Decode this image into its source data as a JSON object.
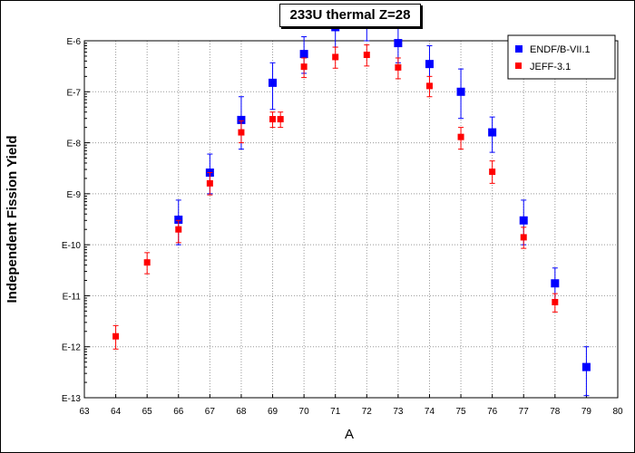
{
  "chart_data": {
    "type": "scatter",
    "title": "233U thermal Z=28",
    "xlabel": "A",
    "ylabel": "Independent Fission Yield",
    "xlim": [
      63,
      80
    ],
    "ylim": [
      1e-13,
      1e-06
    ],
    "yscale": "log",
    "grid": true,
    "legend_position": "top-right",
    "x_ticks": [
      "63",
      "64",
      "65",
      "66",
      "67",
      "68",
      "69",
      "70",
      "71",
      "72",
      "73",
      "74",
      "75",
      "76",
      "77",
      "78",
      "79",
      "80"
    ],
    "y_ticks": [
      "E-13",
      "E-12",
      "E-11",
      "E-10",
      "E-9",
      "E-8",
      "E-7",
      "E-6"
    ],
    "series": [
      {
        "name": "ENDF/B-VII.1",
        "color": "#0000ff",
        "marker": "square",
        "points": [
          {
            "x": 66,
            "y": 3.1e-10,
            "lo": 1e-10,
            "hi": 7.5e-10
          },
          {
            "x": 67,
            "y": 2.6e-09,
            "lo": 1e-09,
            "hi": 6e-09
          },
          {
            "x": 68,
            "y": 2.8e-08,
            "lo": 7.5e-09,
            "hi": 8e-08
          },
          {
            "x": 69,
            "y": 1.5e-07,
            "lo": 4.5e-08,
            "hi": 3.7e-07
          },
          {
            "x": 70,
            "y": 5.5e-07,
            "lo": 2.3e-07,
            "hi": 1.2e-06
          },
          {
            "x": 71,
            "y": 1.85e-06,
            "lo": 7.5e-07,
            "hi": 3.5e-06
          },
          {
            "x": 72,
            "y": 2.1e-06,
            "lo": 1e-06,
            "hi": 3.5e-06
          },
          {
            "x": 73,
            "y": 9e-07,
            "lo": 3.7e-07,
            "hi": 1.9e-06
          },
          {
            "x": 74,
            "y": 3.5e-07,
            "lo": 1.2e-07,
            "hi": 8e-07
          },
          {
            "x": 75,
            "y": 1e-07,
            "lo": 3e-08,
            "hi": 2.8e-07
          },
          {
            "x": 76,
            "y": 1.6e-08,
            "lo": 6.5e-09,
            "hi": 3.2e-08
          },
          {
            "x": 77,
            "y": 3e-10,
            "lo": 1e-10,
            "hi": 7.5e-10
          },
          {
            "x": 78,
            "y": 1.75e-11,
            "lo": 7.5e-12,
            "hi": 3.5e-11
          },
          {
            "x": 79,
            "y": 4e-13,
            "lo": 1.1e-13,
            "hi": 1e-12
          }
        ]
      },
      {
        "name": "JEFF-3.1",
        "color": "#ff0000",
        "marker": "square",
        "points": [
          {
            "x": 64,
            "y": 1.6e-12,
            "lo": 9e-13,
            "hi": 2.6e-12
          },
          {
            "x": 65,
            "y": 4.5e-11,
            "lo": 2.7e-11,
            "hi": 7e-11
          },
          {
            "x": 66,
            "y": 2e-10,
            "lo": 1.1e-10,
            "hi": 3e-10
          },
          {
            "x": 67,
            "y": 1.6e-09,
            "lo": 9.5e-10,
            "hi": 2.6e-09
          },
          {
            "x": 68,
            "y": 1.6e-08,
            "lo": 1e-08,
            "hi": 2.7e-08
          },
          {
            "x": 69,
            "y": 2.9e-08,
            "lo": 2e-08,
            "hi": 4e-08
          },
          {
            "x": 69.25,
            "y": 2.9e-08,
            "lo": 2e-08,
            "hi": 4e-08
          },
          {
            "x": 70,
            "y": 3.1e-07,
            "lo": 1.9e-07,
            "hi": 4.6e-07
          },
          {
            "x": 71,
            "y": 4.8e-07,
            "lo": 2.9e-07,
            "hi": 7.5e-07
          },
          {
            "x": 72,
            "y": 5.3e-07,
            "lo": 3.2e-07,
            "hi": 8.3e-07
          },
          {
            "x": 73,
            "y": 3e-07,
            "lo": 1.8e-07,
            "hi": 4.6e-07
          },
          {
            "x": 74,
            "y": 1.3e-07,
            "lo": 8e-08,
            "hi": 2e-07
          },
          {
            "x": 75,
            "y": 1.3e-08,
            "lo": 7.5e-09,
            "hi": 2e-08
          },
          {
            "x": 76,
            "y": 2.7e-09,
            "lo": 1.6e-09,
            "hi": 4.4e-09
          },
          {
            "x": 77,
            "y": 1.4e-10,
            "lo": 8.5e-11,
            "hi": 2.2e-10
          },
          {
            "x": 78,
            "y": 7.5e-12,
            "lo": 4.8e-12,
            "hi": 1.1e-11
          }
        ]
      }
    ]
  }
}
